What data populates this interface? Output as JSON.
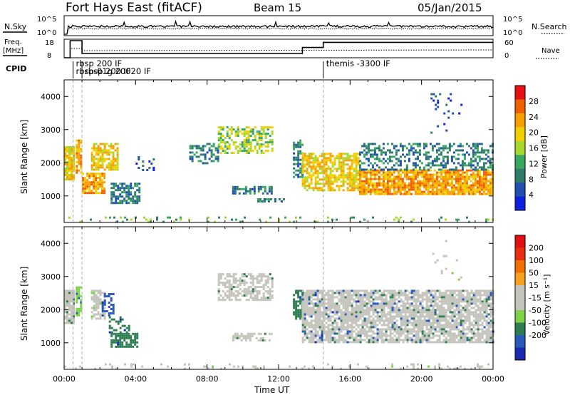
{
  "header": {
    "title": "Fort Hays East (fitACF)",
    "beam": "Beam 15",
    "date": "05/Jan/2015"
  },
  "status_panels": {
    "nsky_label": "N.Sky",
    "nsearch_label": "N.Search",
    "nsky_ticks": [
      "10^5",
      "10^0"
    ],
    "nsearch_ticks": [
      "10^5",
      "10^0"
    ],
    "freq_label_lines": [
      "Freq.",
      "[MHz]"
    ],
    "freq_ticks": [
      "18",
      "8"
    ],
    "nave_label": "Nave",
    "nave_ticks": [
      "60",
      "0"
    ],
    "cpid_label": "CPID",
    "cpid_entries": [
      {
        "time": "00:30",
        "label": "rbsp 200 IF",
        "row": 1
      },
      {
        "time": "00:30",
        "label": "rbsp-01g 20020 IF",
        "row": 2
      },
      {
        "time": "01:00",
        "label": "rbsp 200 IF",
        "row": 2
      },
      {
        "time": "14:30",
        "label": "themis -3300 IF",
        "row": 1
      }
    ],
    "freq_steps_mhz": [
      {
        "from": "00:00",
        "to": "00:20",
        "value": 8
      },
      {
        "from": "00:20",
        "to": "01:00",
        "value": 18
      },
      {
        "from": "01:00",
        "to": "13:20",
        "value": 10.5
      },
      {
        "from": "13:20",
        "to": "14:30",
        "value": 14
      },
      {
        "from": "14:30",
        "to": "24:00",
        "value": 17
      }
    ],
    "cpid_change_times": [
      "00:30",
      "01:00",
      "14:30"
    ]
  },
  "colors": {
    "power": [
      "#1020e0",
      "#2050b0",
      "#2e7d6a",
      "#3aa860",
      "#a8d830",
      "#f0d000",
      "#f5a000",
      "#f06000",
      "#e81010"
    ],
    "velocity": [
      "#1a2ab0",
      "#2a5ab8",
      "#2e7d50",
      "#7ed24a",
      "#c4c4bc",
      "#c4c4bc",
      "#f5a020",
      "#f07000",
      "#e83010",
      "#e01010"
    ]
  },
  "chart_data": [
    {
      "type": "heatmap",
      "name": "power",
      "ylabel": "Slant Range [km]",
      "xlabel": "",
      "y_ticks": [
        "1000",
        "2000",
        "3000",
        "4000"
      ],
      "ylim": [
        200,
        4500
      ],
      "colorbar_label": "Power [dB]",
      "colorbar_ticks": [
        "4",
        "8",
        "12",
        "16",
        "20",
        "24",
        "28"
      ],
      "colorbar_range": [
        0,
        32
      ],
      "bands": [
        {
          "t0": 0.0,
          "t1": 0.5,
          "r0": 1500,
          "r1": 2500,
          "value": 18,
          "density": 0.85
        },
        {
          "t0": 0.65,
          "t1": 1.0,
          "r0": 1700,
          "r1": 2700,
          "value": 22,
          "density": 0.85
        },
        {
          "t0": 1.0,
          "t1": 2.2,
          "r0": 1100,
          "r1": 1700,
          "value": 22,
          "density": 0.8
        },
        {
          "t0": 1.5,
          "t1": 3.0,
          "r0": 1800,
          "r1": 2600,
          "value": 18,
          "density": 0.7
        },
        {
          "t0": 2.6,
          "t1": 4.2,
          "r0": 800,
          "r1": 1400,
          "value": 8,
          "density": 0.7
        },
        {
          "t0": 4.0,
          "t1": 5.0,
          "r0": 1800,
          "r1": 2200,
          "value": 4,
          "density": 0.25
        },
        {
          "t0": 7.0,
          "t1": 8.6,
          "r0": 2000,
          "r1": 2600,
          "value": 6,
          "density": 0.4
        },
        {
          "t0": 8.6,
          "t1": 11.6,
          "r0": 2300,
          "r1": 3100,
          "value": 16,
          "density": 0.55
        },
        {
          "t0": 9.4,
          "t1": 11.6,
          "r0": 1050,
          "r1": 1300,
          "value": 6,
          "density": 0.6
        },
        {
          "t0": 10.8,
          "t1": 12.3,
          "r0": 830,
          "r1": 930,
          "value": 6,
          "density": 0.5
        },
        {
          "t0": 12.8,
          "t1": 13.3,
          "r0": 1600,
          "r1": 2700,
          "value": 8,
          "density": 0.55
        },
        {
          "t0": 13.3,
          "t1": 16.5,
          "r0": 1150,
          "r1": 2300,
          "value": 20,
          "density": 0.75
        },
        {
          "t0": 16.5,
          "t1": 24.0,
          "r0": 1050,
          "r1": 1800,
          "value": 24,
          "density": 0.85
        },
        {
          "t0": 16.5,
          "t1": 24.0,
          "r0": 1800,
          "r1": 2600,
          "value": 8,
          "density": 0.45
        },
        {
          "t0": 20.5,
          "t1": 22.3,
          "r0": 2900,
          "r1": 4100,
          "value": 4,
          "density": 0.08
        },
        {
          "t0": 0.0,
          "t1": 24.0,
          "r0": 200,
          "r1": 380,
          "value": 12,
          "density": 0.12
        }
      ]
    },
    {
      "type": "heatmap",
      "name": "velocity",
      "ylabel": "Slant Range [km]",
      "xlabel": "Time UT",
      "x_ticks": [
        "00:00",
        "04:00",
        "08:00",
        "12:00",
        "16:00",
        "20:00",
        "00:00"
      ],
      "y_ticks": [
        "1000",
        "2000",
        "3000",
        "4000"
      ],
      "ylim": [
        200,
        4500
      ],
      "colorbar_label": "Velocity [m s⁻¹]",
      "colorbar_ticks": [
        "200",
        "100",
        "50",
        "15",
        "-15",
        "-50",
        "-100",
        "-200"
      ],
      "bands": [
        {
          "t0": 0.0,
          "t1": 0.5,
          "r0": 1600,
          "r1": 2600,
          "value": "-15",
          "density": 0.85
        },
        {
          "t0": 0.65,
          "t1": 1.0,
          "r0": 1800,
          "r1": 2700,
          "value": "15",
          "density": 0.8
        },
        {
          "t0": 1.5,
          "t1": 2.3,
          "r0": 1700,
          "r1": 2600,
          "value": "-50",
          "density": 0.6
        },
        {
          "t0": 2.1,
          "t1": 2.8,
          "r0": 1800,
          "r1": 2500,
          "value": "100",
          "density": 0.5
        },
        {
          "t0": 2.5,
          "t1": 3.6,
          "r0": 1300,
          "r1": 1800,
          "value": "50",
          "density": 0.35
        },
        {
          "t0": 2.6,
          "t1": 4.1,
          "r0": 900,
          "r1": 1300,
          "value": "50",
          "density": 0.75
        },
        {
          "t0": 0.0,
          "t1": 24.0,
          "r0": 200,
          "r1": 380,
          "value": "-50",
          "density": 0.15
        },
        {
          "t0": 8.6,
          "t1": 11.6,
          "r0": 2300,
          "r1": 3100,
          "value": "-15",
          "density": 0.6
        },
        {
          "t0": 9.4,
          "t1": 11.6,
          "r0": 1050,
          "r1": 1300,
          "value": "-15",
          "density": 0.55
        },
        {
          "t0": 12.8,
          "t1": 13.3,
          "r0": 1700,
          "r1": 2600,
          "value": "50",
          "density": 0.7
        },
        {
          "t0": 13.3,
          "t1": 24.0,
          "r0": 1050,
          "r1": 2600,
          "value": "-15",
          "density": 0.8
        },
        {
          "t0": 13.3,
          "t1": 24.0,
          "r0": 1050,
          "r1": 2600,
          "value": "100",
          "density": 0.04
        },
        {
          "t0": 20.6,
          "t1": 22.2,
          "r0": 2900,
          "r1": 4100,
          "value": "-50",
          "density": 0.07
        }
      ]
    }
  ]
}
